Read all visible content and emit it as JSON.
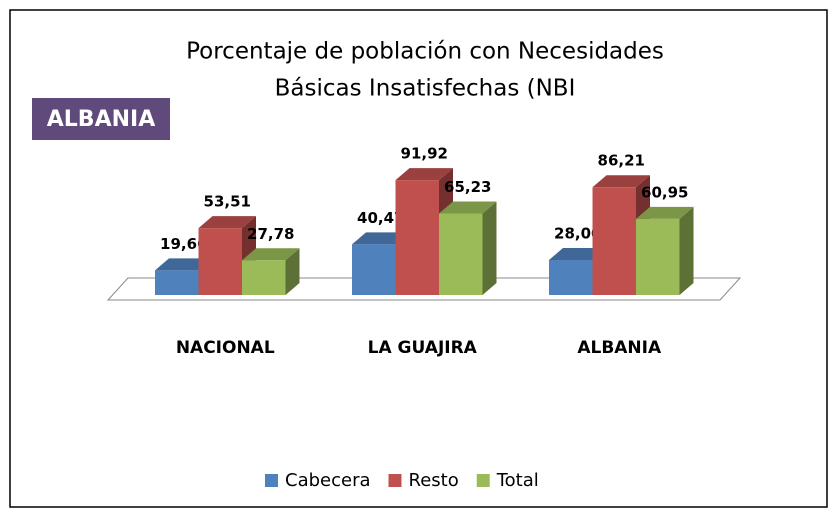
{
  "chart_data": {
    "type": "bar3d",
    "title": [
      "Porcentaje de población con Necesidades",
      "Básicas Insatisfechas (NBI"
    ],
    "annotation": "ALBANIA",
    "categories": [
      "NACIONAL",
      "LA GUAJIRA",
      "ALBANIA"
    ],
    "series": [
      {
        "name": "Cabecera",
        "color": "#4f81bd",
        "values": [
          19.66,
          40.47,
          28.0
        ],
        "value_labels": [
          "19,66",
          "40,47",
          "28,00"
        ]
      },
      {
        "name": "Resto",
        "color": "#c0504d",
        "values": [
          53.51,
          91.92,
          86.21
        ],
        "value_labels": [
          "53,51",
          "91,92",
          "86,21"
        ]
      },
      {
        "name": "Total",
        "color": "#9bbb59",
        "values": [
          27.78,
          65.23,
          60.95
        ],
        "value_labels": [
          "27,78",
          "65,23",
          "60,95"
        ]
      }
    ],
    "ylim": [
      0,
      100
    ],
    "legend": "bottom"
  }
}
